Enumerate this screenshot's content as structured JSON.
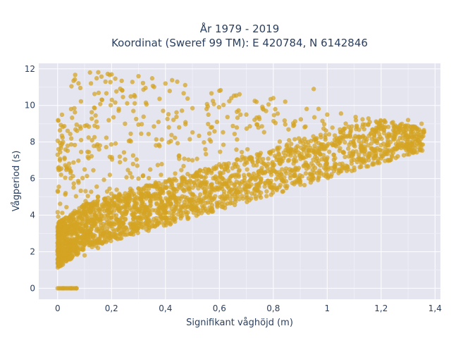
{
  "chart_data": {
    "type": "scatter",
    "title_line1": "År 1979 - 2019",
    "title_line2": "Koordinat (Sweref 99 TM): E 420784, N 6142846",
    "xlabel": "Signifikant våghöjd (m)",
    "ylabel": "Vågperiod (s)",
    "xlim": [
      -0.07,
      1.42
    ],
    "ylim": [
      -0.6,
      12.3
    ],
    "x_ticks": [
      0,
      0.2,
      0.4,
      0.6,
      0.8,
      1,
      1.2,
      1.4
    ],
    "x_tick_labels": [
      "0",
      "0,2",
      "0,4",
      "0,6",
      "0,8",
      "1",
      "1,2",
      "1,4"
    ],
    "y_ticks": [
      0,
      2,
      4,
      6,
      8,
      10,
      12
    ],
    "y_tick_labels": [
      "0",
      "2",
      "4",
      "6",
      "8",
      "10",
      "12"
    ],
    "grid": true,
    "marker_color": "#d4a422",
    "plot_background": "#e5e5f0",
    "points_sample": [
      [
        0.05,
        0
      ],
      [
        0.02,
        0
      ],
      [
        0.07,
        0
      ],
      [
        0.03,
        1.6
      ],
      [
        0.1,
        1.8
      ],
      [
        0.15,
        2.2
      ],
      [
        0.2,
        2.8
      ],
      [
        0.3,
        3.4
      ],
      [
        0.4,
        3.9
      ],
      [
        0.5,
        4.3
      ],
      [
        0.6,
        4.7
      ],
      [
        0.7,
        5.1
      ],
      [
        0.8,
        5.5
      ],
      [
        0.9,
        5.8
      ],
      [
        1.0,
        6.2
      ],
      [
        1.1,
        6.6
      ],
      [
        1.2,
        7.1
      ],
      [
        1.3,
        7.6
      ],
      [
        1.35,
        9.0
      ],
      [
        1.3,
        9.2
      ],
      [
        1.2,
        8.7
      ],
      [
        1.0,
        9.5
      ],
      [
        0.8,
        10.4
      ],
      [
        0.6,
        10.8
      ],
      [
        0.4,
        11.2
      ],
      [
        0.3,
        11.6
      ],
      [
        0.2,
        11.7
      ],
      [
        0.12,
        11.8
      ],
      [
        0.05,
        9.8
      ],
      [
        0.02,
        8.0
      ],
      [
        0.5,
        7.0
      ],
      [
        0.3,
        6.0
      ],
      [
        0.9,
        8.0
      ],
      [
        1.25,
        8.2
      ],
      [
        0.15,
        5.0
      ],
      [
        0.7,
        9.5
      ],
      [
        0.95,
        10.9
      ],
      [
        0.1,
        6.5
      ],
      [
        0.25,
        9.0
      ],
      [
        1.0,
        7.8
      ]
    ]
  }
}
